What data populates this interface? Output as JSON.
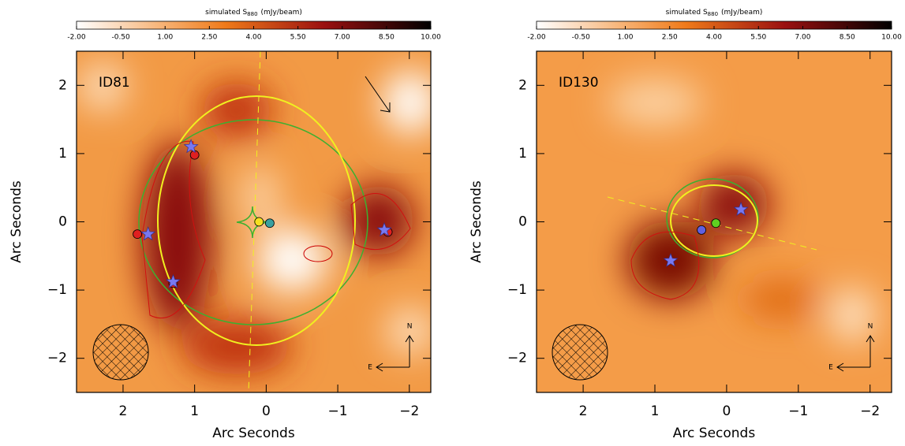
{
  "chart_data": [
    {
      "type": "heatmap",
      "panel_label": "ID81",
      "colorbar_label": "simulated S",
      "colorbar_label_sub": "880",
      "colorbar_label_unit": "(mJy/beam)",
      "cblim": [
        -2,
        10
      ],
      "cbticks": [
        {
          "value": -2,
          "label": "-2.00"
        },
        {
          "value": -0.5,
          "label": "-0.50"
        },
        {
          "value": 1,
          "label": "1.00"
        },
        {
          "value": 2.5,
          "label": "2.50"
        },
        {
          "value": 4,
          "label": "4.00"
        },
        {
          "value": 5.5,
          "label": "5.50"
        },
        {
          "value": 7,
          "label": "7.00"
        },
        {
          "value": 8.5,
          "label": "8.50"
        },
        {
          "value": 10,
          "label": "10.00"
        }
      ],
      "xlabel": "Arc Seconds",
      "ylabel": "Arc Seconds",
      "xlim": [
        2.65,
        -2.3
      ],
      "ylim": [
        -2.5,
        2.5
      ],
      "xticks": [
        2,
        1,
        0,
        {
          "value": -1,
          "label": "−1"
        },
        {
          "value": -2,
          "label": "−2"
        }
      ],
      "yticks": [
        {
          "value": -2,
          "label": "−2"
        },
        {
          "value": -1,
          "label": "−1"
        },
        0,
        1,
        2
      ],
      "compass_n": "N",
      "compass_e": "E",
      "points": [
        {
          "marker": "circle",
          "color": "#e02020",
          "x": [
            1.0,
            1.8,
            1.3,
            -1.7
          ],
          "y": [
            0.98,
            -0.18,
            -0.9,
            -0.15
          ]
        },
        {
          "marker": "star",
          "color": "#7878f0",
          "x": [
            1.05,
            1.65,
            1.3,
            -1.65
          ],
          "y": [
            1.1,
            -0.18,
            -0.88,
            -0.12
          ]
        },
        {
          "marker": "circle",
          "color": "#f5e020",
          "x": [
            0.1
          ],
          "y": [
            0.0
          ]
        },
        {
          "marker": "circle",
          "color": "#3aa0a0",
          "x": [
            -0.05
          ],
          "y": [
            -0.02
          ]
        }
      ]
    },
    {
      "type": "heatmap",
      "panel_label": "ID130",
      "colorbar_label": "simulated S",
      "colorbar_label_sub": "880",
      "colorbar_label_unit": "(mJy/beam)",
      "cblim": [
        -2,
        10
      ],
      "cbticks": [
        {
          "value": -2,
          "label": "-2.00"
        },
        {
          "value": -0.5,
          "label": "-0.50"
        },
        {
          "value": 1,
          "label": "1.00"
        },
        {
          "value": 2.5,
          "label": "2.50"
        },
        {
          "value": 4,
          "label": "4.00"
        },
        {
          "value": 5.5,
          "label": "5.50"
        },
        {
          "value": 7,
          "label": "7.00"
        },
        {
          "value": 8.5,
          "label": "8.50"
        },
        {
          "value": 10,
          "label": "10.00"
        }
      ],
      "xlabel": "Arc Seconds",
      "ylabel": "Arc Seconds",
      "xlim": [
        2.65,
        -2.3
      ],
      "ylim": [
        -2.5,
        2.5
      ],
      "xticks": [
        2,
        1,
        0,
        {
          "value": -1,
          "label": "−1"
        },
        {
          "value": -2,
          "label": "−2"
        }
      ],
      "yticks": [
        {
          "value": -2,
          "label": "−2"
        },
        {
          "value": -1,
          "label": "−1"
        },
        0,
        1,
        2
      ],
      "compass_n": "N",
      "compass_e": "E",
      "points": [
        {
          "marker": "star",
          "color": "#7878f0",
          "x": [
            0.78,
            -0.2
          ],
          "y": [
            -0.57,
            0.18
          ]
        },
        {
          "marker": "circle",
          "color": "#6060e0",
          "x": [
            0.35
          ],
          "y": [
            -0.12
          ]
        },
        {
          "marker": "circle",
          "color": "#60d020",
          "x": [
            0.15
          ],
          "y": [
            -0.02
          ]
        }
      ]
    }
  ]
}
